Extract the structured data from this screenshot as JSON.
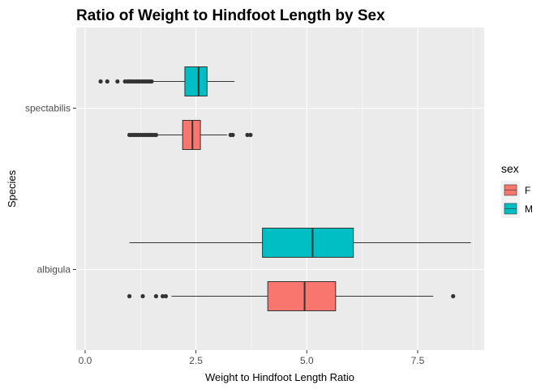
{
  "chart_data": {
    "type": "boxplot",
    "orientation": "horizontal",
    "title": "Ratio of Weight to Hindfoot Length by Sex",
    "xlabel": "Weight to Hindfoot Length Ratio",
    "ylabel": "Species",
    "xlim": [
      -0.2,
      9.0
    ],
    "x_ticks": [
      0.0,
      2.5,
      5.0,
      7.5
    ],
    "x_tick_labels": [
      "0.0",
      "2.5",
      "5.0",
      "7.5"
    ],
    "categories": [
      "spectabilis",
      "albigula"
    ],
    "grid": true,
    "legend": {
      "title": "sex",
      "position": "right",
      "entries": [
        {
          "label": "F",
          "color": "#F8766D"
        },
        {
          "label": "M",
          "color": "#00BFC4"
        }
      ]
    },
    "series": [
      {
        "name": "F",
        "color": "#F8766D",
        "boxes": [
          {
            "category": "spectabilis",
            "whisker_low": 1.05,
            "q1": 2.2,
            "median": 2.42,
            "q3": 2.6,
            "whisker_high": 3.2,
            "outliers": [
              1.0,
              1.05,
              1.1,
              1.15,
              1.2,
              1.25,
              1.3,
              1.35,
              1.4,
              1.45,
              1.5,
              1.55,
              1.6,
              3.28,
              3.33,
              3.66,
              3.73
            ]
          },
          {
            "category": "albigula",
            "whisker_low": 1.95,
            "q1": 4.12,
            "median": 4.95,
            "q3": 5.65,
            "whisker_high": 7.85,
            "outliers": [
              1.0,
              1.3,
              1.6,
              1.75,
              1.82,
              8.3
            ]
          }
        ]
      },
      {
        "name": "M",
        "color": "#00BFC4",
        "boxes": [
          {
            "category": "spectabilis",
            "whisker_low": 1.5,
            "q1": 2.25,
            "median": 2.56,
            "q3": 2.75,
            "whisker_high": 3.37,
            "outliers": [
              0.35,
              0.5,
              0.73,
              0.9,
              0.96,
              1.0,
              1.05,
              1.1,
              1.15,
              1.2,
              1.25,
              1.3,
              1.35,
              1.4,
              1.45,
              1.5
            ]
          },
          {
            "category": "albigula",
            "whisker_low": 1.0,
            "q1": 4.0,
            "median": 5.13,
            "q3": 6.05,
            "whisker_high": 8.7,
            "outliers": []
          }
        ]
      }
    ]
  }
}
